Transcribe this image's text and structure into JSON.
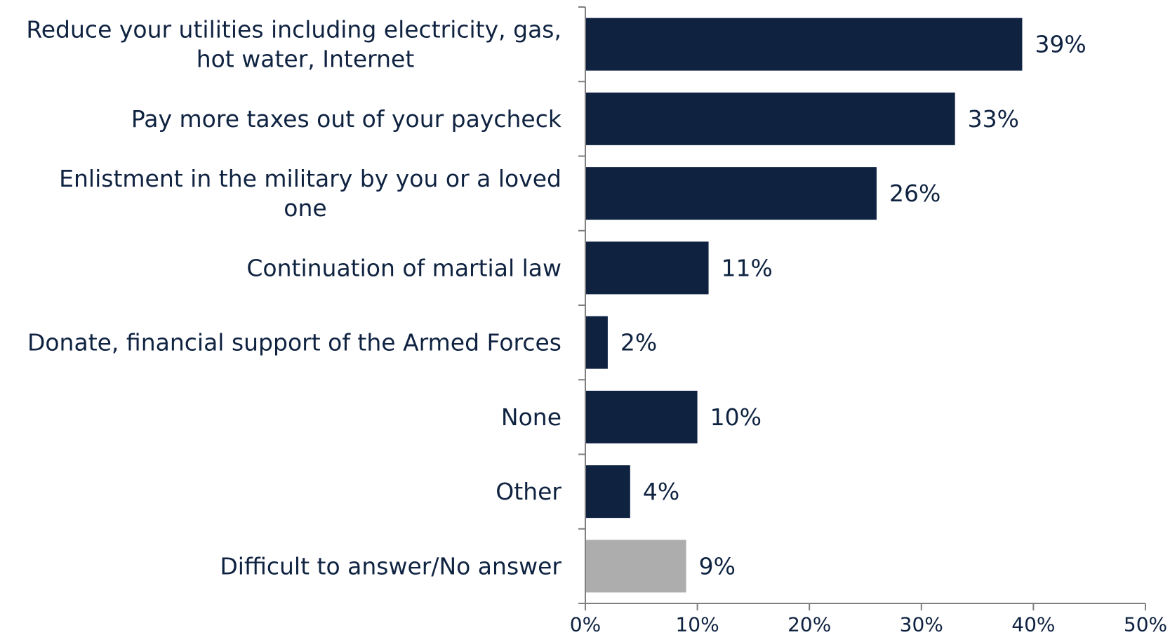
{
  "chart_data": {
    "type": "bar",
    "orientation": "horizontal",
    "categories": [
      [
        "Reduce your utilities including electricity, gas,",
        "hot water, Internet"
      ],
      [
        "Pay more taxes out of your paycheck"
      ],
      [
        "Enlistment in the military by you or a loved",
        "one"
      ],
      [
        "Continuation of martial law"
      ],
      [
        "Donate, financial support of the Armed Forces"
      ],
      [
        "None"
      ],
      [
        "Other"
      ],
      [
        "Difficult to answer/No answer"
      ]
    ],
    "values": [
      39,
      33,
      26,
      11,
      2,
      10,
      4,
      9
    ],
    "value_labels": [
      "39%",
      "33%",
      "26%",
      "11%",
      "2%",
      "10%",
      "4%",
      "9%"
    ],
    "bar_colors": [
      "#0f2341",
      "#0f2341",
      "#0f2341",
      "#0f2341",
      "#0f2341",
      "#0f2341",
      "#0f2341",
      "#adadad"
    ],
    "xlim": [
      0,
      50
    ],
    "xticks": [
      0,
      10,
      20,
      30,
      40,
      50
    ],
    "xtick_labels": [
      "0%",
      "10%",
      "20%",
      "30%",
      "40%",
      "50%"
    ],
    "grid": false,
    "legend": "none"
  }
}
